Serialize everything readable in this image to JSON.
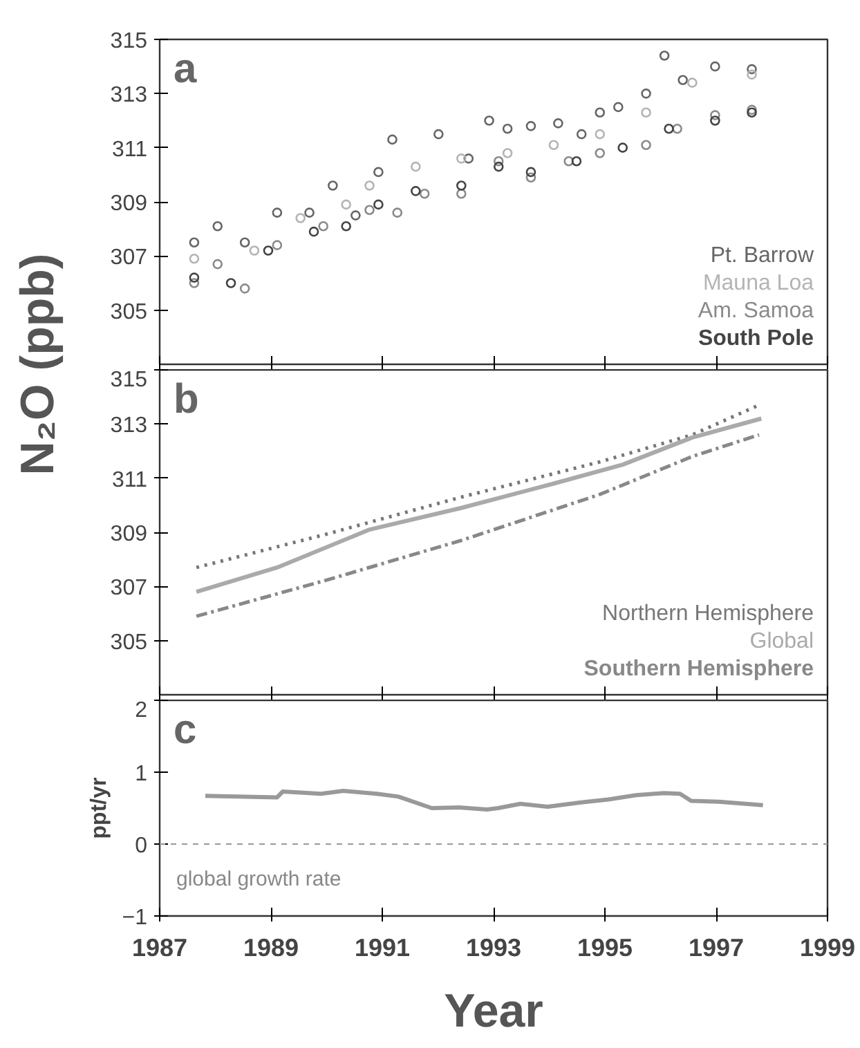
{
  "chart_data": [
    {
      "type": "scatter",
      "ylabel": "N₂O (ppb)",
      "annotations": [
        "a"
      ],
      "xlim": [
        1987,
        1999
      ],
      "xticks": [
        1987,
        1989,
        1991,
        1993,
        1995,
        1997,
        1999
      ],
      "ylim": [
        303,
        315
      ],
      "yticks": [
        305,
        307,
        309,
        311,
        313,
        315
      ],
      "tick_labels": "y",
      "marker": "circle",
      "legend": "bottom right",
      "series": [
        {
          "name": "Pt. Barrow",
          "color": "#666666",
          "x": [
            1987.62,
            1988.04,
            1988.53,
            1989.11,
            1989.69,
            1990.11,
            1990.52,
            1990.93,
            1991.18,
            1992.01,
            1992.55,
            1992.92,
            1993.25,
            1993.67,
            1994.16,
            1994.58,
            1994.91,
            1995.24,
            1995.74,
            1996.07,
            1996.4,
            1996.98,
            1997.64
          ],
          "values": [
            307.5,
            308.1,
            307.5,
            308.6,
            308.6,
            309.6,
            308.5,
            310.1,
            311.3,
            311.5,
            310.6,
            312.0,
            311.7,
            311.8,
            311.9,
            311.5,
            312.3,
            312.5,
            313.0,
            314.4,
            313.5,
            314.0,
            313.9
          ]
        },
        {
          "name": "Mauna Loa",
          "color": "#b4b4b4",
          "x": [
            1987.62,
            1988.7,
            1989.53,
            1990.35,
            1990.77,
            1991.6,
            1992.42,
            1993.25,
            1994.08,
            1994.91,
            1995.74,
            1996.57,
            1997.64
          ],
          "values": [
            306.9,
            307.2,
            308.4,
            308.9,
            309.6,
            310.3,
            310.6,
            310.8,
            311.1,
            311.5,
            312.3,
            313.4,
            313.7
          ]
        },
        {
          "name": "Am. Samoa",
          "color": "#8a8a8a",
          "x": [
            1987.62,
            1988.04,
            1988.53,
            1989.11,
            1989.94,
            1990.77,
            1991.27,
            1991.76,
            1992.42,
            1993.09,
            1993.67,
            1994.35,
            1994.91,
            1995.74,
            1996.3,
            1996.98,
            1997.64
          ],
          "values": [
            306.0,
            306.7,
            305.8,
            307.4,
            308.1,
            308.7,
            308.6,
            309.3,
            309.3,
            310.5,
            309.9,
            310.5,
            310.8,
            311.1,
            311.7,
            312.2,
            312.4
          ]
        },
        {
          "name": "South Pole",
          "color": "#444444",
          "x": [
            1987.62,
            1988.28,
            1988.95,
            1989.77,
            1990.35,
            1990.93,
            1991.6,
            1992.42,
            1993.09,
            1993.67,
            1994.49,
            1995.32,
            1996.15,
            1996.98,
            1997.64
          ],
          "values": [
            306.2,
            306.0,
            307.2,
            307.9,
            308.1,
            308.9,
            309.4,
            309.6,
            310.3,
            310.1,
            310.5,
            311.0,
            311.7,
            312.0,
            312.3
          ]
        }
      ]
    },
    {
      "type": "line",
      "annotations": [
        "b"
      ],
      "xlim": [
        1987,
        1999
      ],
      "xticks": [
        1987,
        1989,
        1991,
        1993,
        1995,
        1997,
        1999
      ],
      "ylim": [
        303,
        315
      ],
      "yticks": [
        305,
        307,
        309,
        311,
        313,
        315
      ],
      "tick_labels": "y",
      "legend": "bottom right",
      "series": [
        {
          "name": "Northern Hemisphere",
          "color": "#777777",
          "line_style": "dotted",
          "x": [
            1987.66,
            1989.94,
            1992.42,
            1994.91,
            1996.57,
            1997.77
          ],
          "values": [
            307.7,
            308.9,
            310.3,
            311.6,
            312.6,
            313.7
          ]
        },
        {
          "name": "Global",
          "color": "#aaaaaa",
          "line_style": "solid",
          "x": [
            1987.66,
            1989.11,
            1990.77,
            1992.42,
            1994.08,
            1995.32,
            1996.57,
            1997.81
          ],
          "values": [
            306.8,
            307.7,
            309.1,
            309.9,
            310.8,
            311.5,
            312.5,
            313.2
          ]
        },
        {
          "name": "Southern Hemisphere",
          "color": "#888888",
          "line_style": "dashed",
          "x": [
            1987.66,
            1989.94,
            1992.42,
            1994.91,
            1996.57,
            1997.77
          ],
          "values": [
            305.9,
            307.2,
            308.7,
            310.4,
            311.8,
            312.6
          ]
        }
      ]
    },
    {
      "type": "line",
      "annotations": [
        "c",
        "global growth rate"
      ],
      "xlabel": "Year",
      "ylabel": "ppt/yr",
      "xlim": [
        1987,
        1999
      ],
      "xticks": [
        1987,
        1989,
        1991,
        1993,
        1995,
        1997,
        1999
      ],
      "ylim": [
        -1,
        2
      ],
      "yticks": [
        -1,
        0,
        1,
        2
      ],
      "ref_lines": [
        {
          "axis": "y",
          "value": 0,
          "color": "#999999",
          "line_style": "dashed"
        }
      ],
      "series": [
        {
          "color": "#999999",
          "x": [
            1987.82,
            1989.11,
            1989.21,
            1989.9,
            1990.3,
            1990.9,
            1991.29,
            1991.89,
            1992.38,
            1992.88,
            1993.08,
            1993.48,
            1993.97,
            1994.57,
            1995.06,
            1995.56,
            1996.06,
            1996.35,
            1996.55,
            1997.05,
            1997.84
          ],
          "values": [
            0.67,
            0.65,
            0.73,
            0.7,
            0.74,
            0.7,
            0.66,
            0.5,
            0.51,
            0.48,
            0.5,
            0.56,
            0.52,
            0.58,
            0.62,
            0.68,
            0.71,
            0.7,
            0.6,
            0.59,
            0.54
          ]
        }
      ]
    }
  ]
}
